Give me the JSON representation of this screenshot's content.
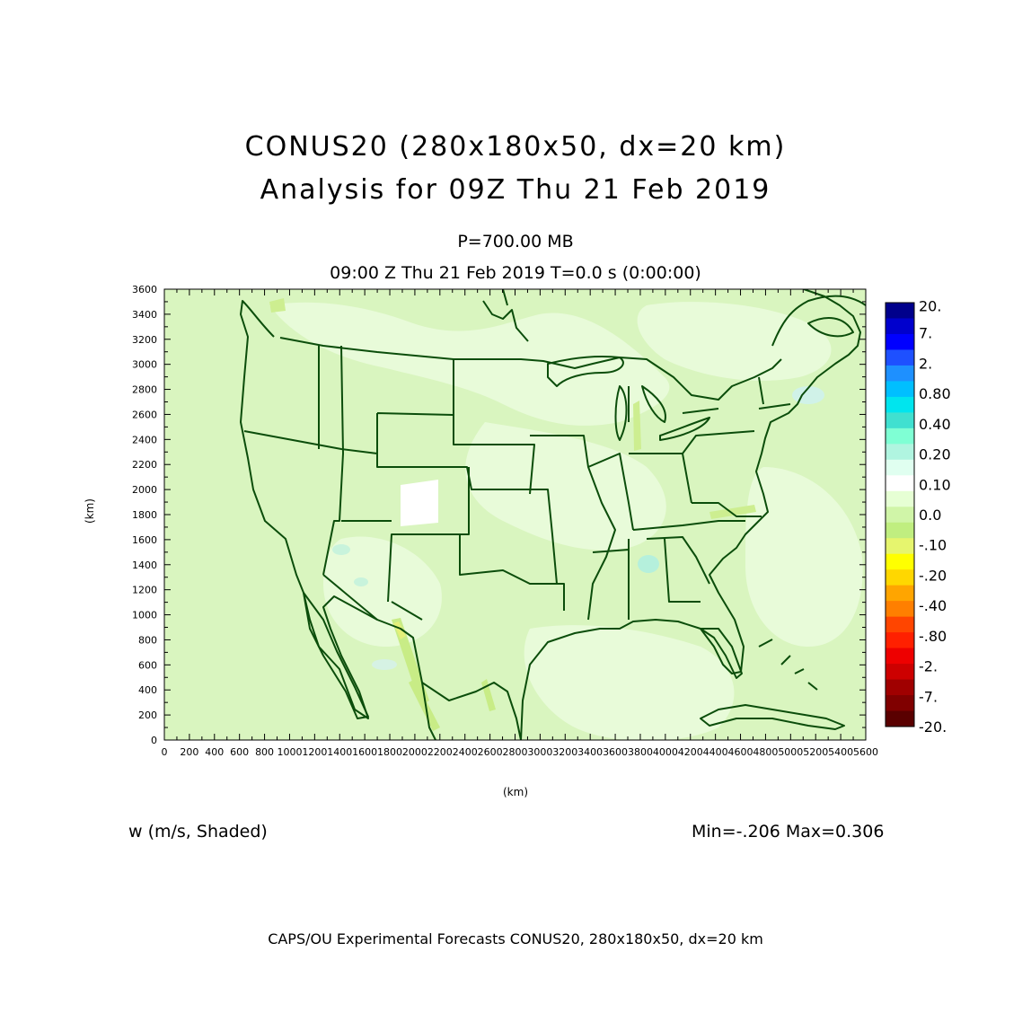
{
  "header": {
    "title_line1": "CONUS20 (280x180x50, dx=20 km)",
    "title_line2": "Analysis for 09Z Thu 21 Feb 2019",
    "level": "P=700.00 MB",
    "time_line": "09:00 Z Thu 21 Feb 2019    T=0.0 s (0:00:00)"
  },
  "plot": {
    "variable_label": "w (m/s, Shaded)",
    "min_max": "Min=-.206 Max=0.306",
    "x_axis_label": "(km)",
    "y_axis_label": "(km)",
    "x_ticks": [
      "0",
      "200",
      "400",
      "600",
      "800",
      "1000",
      "1200",
      "1400",
      "1600",
      "1800",
      "2000",
      "2200",
      "2400",
      "2600",
      "2800",
      "3000",
      "3200",
      "3400",
      "3600",
      "3800",
      "4000",
      "4200",
      "4400",
      "4600",
      "4800",
      "5000",
      "5200",
      "5400",
      "5600"
    ],
    "y_ticks": [
      "0",
      "200",
      "400",
      "600",
      "800",
      "1000",
      "1200",
      "1400",
      "1600",
      "1800",
      "2000",
      "2200",
      "2400",
      "2600",
      "2800",
      "3000",
      "3200",
      "3400",
      "3600"
    ],
    "x_range": [
      0,
      5600
    ],
    "y_range": [
      0,
      3600
    ]
  },
  "colorbar": {
    "labels": [
      "20.",
      "7.",
      "2.",
      "0.80",
      "0.40",
      "0.20",
      "0.10",
      "0.0",
      "-.10",
      "-.20",
      "-.40",
      "-.80",
      "-2.",
      "-7.",
      "-20."
    ],
    "colors_top_to_bottom": [
      "#00008b",
      "#0000cd",
      "#0000ff",
      "#1e50ff",
      "#1e90ff",
      "#00bfff",
      "#00e5ee",
      "#40e0d0",
      "#7fffd4",
      "#b0f5e0",
      "#e0fff0",
      "#ffffff",
      "#e6ffd4",
      "#d0f5a8",
      "#c0ee80",
      "#e6f56e",
      "#ffff00",
      "#ffd700",
      "#ffa500",
      "#ff7f00",
      "#ff4500",
      "#ff2000",
      "#ee0000",
      "#cd0000",
      "#a00000",
      "#800000",
      "#5a0000"
    ]
  },
  "footer": "CAPS/OU Experimental Forecasts  CONUS20, 280x180x50, dx=20 km",
  "map_colors": {
    "background_field": "#d9f5bf",
    "pale_field": "#e8fbd9",
    "boundary": "#0b4d0b"
  }
}
